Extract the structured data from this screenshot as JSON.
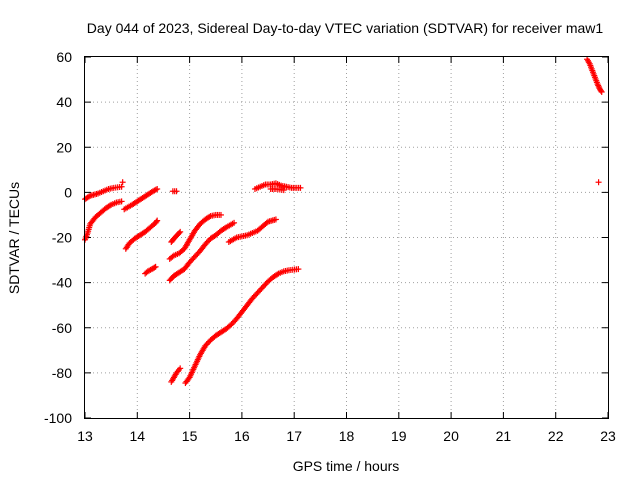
{
  "chart_data": {
    "type": "scatter",
    "title": "Day 044 of 2023, Sidereal Day-to-day VTEC variation (SDTVAR) for receiver maw1",
    "xlabel": "GPS time / hours",
    "ylabel": "SDTVAR / TECUs",
    "xlim": [
      13,
      23
    ],
    "ylim": [
      -100,
      60
    ],
    "xticks": [
      13,
      14,
      15,
      16,
      17,
      18,
      19,
      20,
      21,
      22,
      23
    ],
    "yticks": [
      -100,
      -80,
      -60,
      -40,
      -20,
      0,
      20,
      40,
      60
    ],
    "grid": true,
    "marker": "+",
    "marker_color": "#ff0000",
    "segments": [
      {
        "points": [
          [
            13.0,
            -3
          ],
          [
            13.1,
            -1.5
          ],
          [
            13.25,
            -0.5
          ],
          [
            13.35,
            0.5
          ],
          [
            13.45,
            1.5
          ],
          [
            13.55,
            2
          ],
          [
            13.7,
            2.5
          ]
        ]
      },
      {
        "points": [
          [
            13.0,
            -21
          ],
          [
            13.05,
            -18
          ],
          [
            13.1,
            -14
          ],
          [
            13.2,
            -11
          ],
          [
            13.3,
            -9
          ],
          [
            13.4,
            -7
          ],
          [
            13.5,
            -5.5
          ],
          [
            13.6,
            -4.5
          ],
          [
            13.7,
            -4
          ]
        ]
      },
      {
        "points": [
          [
            13.72,
            4.5
          ]
        ]
      },
      {
        "points": [
          [
            13.75,
            -7.5
          ],
          [
            13.9,
            -5.5
          ],
          [
            14.0,
            -4
          ],
          [
            14.1,
            -2.5
          ],
          [
            14.2,
            -1
          ],
          [
            14.3,
            0.5
          ],
          [
            14.38,
            1.5
          ]
        ]
      },
      {
        "points": [
          [
            13.78,
            -25
          ],
          [
            13.85,
            -22.5
          ],
          [
            13.95,
            -20.5
          ],
          [
            14.05,
            -19
          ],
          [
            14.15,
            -17.5
          ],
          [
            14.25,
            -15.5
          ],
          [
            14.35,
            -13.5
          ],
          [
            14.38,
            -12.5
          ]
        ]
      },
      {
        "points": [
          [
            14.15,
            -36
          ],
          [
            14.2,
            -35
          ],
          [
            14.28,
            -34
          ],
          [
            14.35,
            -33
          ]
        ]
      },
      {
        "points": [
          [
            14.68,
            0.5
          ],
          [
            14.75,
            0.5
          ]
        ]
      },
      {
        "points": [
          [
            14.65,
            -22
          ],
          [
            14.7,
            -20.5
          ],
          [
            14.78,
            -18.5
          ],
          [
            14.82,
            -17.5
          ]
        ]
      },
      {
        "points": [
          [
            14.62,
            -29.5
          ],
          [
            14.7,
            -28
          ],
          [
            14.8,
            -27
          ],
          [
            14.9,
            -25
          ],
          [
            15.0,
            -21
          ],
          [
            15.1,
            -17
          ],
          [
            15.2,
            -14
          ],
          [
            15.3,
            -12
          ],
          [
            15.4,
            -10.5
          ],
          [
            15.5,
            -10
          ],
          [
            15.6,
            -10
          ]
        ]
      },
      {
        "points": [
          [
            14.62,
            -39
          ],
          [
            14.7,
            -37
          ],
          [
            14.8,
            -35.5
          ],
          [
            14.9,
            -34
          ],
          [
            15.0,
            -31
          ],
          [
            15.1,
            -28.5
          ],
          [
            15.2,
            -26
          ],
          [
            15.3,
            -23
          ],
          [
            15.4,
            -20.5
          ],
          [
            15.5,
            -19
          ],
          [
            15.6,
            -17
          ],
          [
            15.7,
            -15.5
          ],
          [
            15.85,
            -13.5
          ]
        ]
      },
      {
        "points": [
          [
            14.65,
            -84
          ],
          [
            14.7,
            -82
          ],
          [
            14.75,
            -80
          ],
          [
            14.82,
            -78
          ]
        ]
      },
      {
        "points": [
          [
            14.92,
            -84.5
          ],
          [
            15.0,
            -82
          ],
          [
            15.1,
            -77
          ],
          [
            15.2,
            -72
          ],
          [
            15.3,
            -68
          ],
          [
            15.4,
            -65.5
          ],
          [
            15.5,
            -63.5
          ],
          [
            15.6,
            -62
          ],
          [
            15.7,
            -60.5
          ],
          [
            15.8,
            -58.5
          ],
          [
            15.9,
            -56
          ],
          [
            16.0,
            -53
          ],
          [
            16.1,
            -50
          ],
          [
            16.2,
            -47
          ],
          [
            16.3,
            -44.5
          ],
          [
            16.4,
            -42
          ],
          [
            16.5,
            -39.5
          ],
          [
            16.6,
            -37.5
          ],
          [
            16.7,
            -36
          ],
          [
            16.8,
            -35
          ],
          [
            16.9,
            -34.5
          ],
          [
            17.08,
            -34
          ]
        ]
      },
      {
        "points": [
          [
            15.75,
            -22
          ],
          [
            15.9,
            -20
          ],
          [
            16.0,
            -19.5
          ],
          [
            16.1,
            -19
          ],
          [
            16.2,
            -18
          ],
          [
            16.3,
            -17
          ],
          [
            16.4,
            -15
          ],
          [
            16.5,
            -13
          ],
          [
            16.65,
            -12
          ]
        ]
      },
      {
        "points": [
          [
            16.25,
            1.5
          ],
          [
            16.35,
            2.5
          ],
          [
            16.45,
            3.5
          ],
          [
            16.55,
            3.5
          ],
          [
            16.65,
            4
          ],
          [
            16.75,
            3
          ],
          [
            16.85,
            2.5
          ],
          [
            16.95,
            2
          ],
          [
            17.05,
            2
          ],
          [
            17.12,
            2
          ]
        ]
      },
      {
        "points": [
          [
            16.55,
            1.5
          ],
          [
            16.65,
            1.5
          ],
          [
            16.8,
            1
          ]
        ]
      },
      {
        "points": [
          [
            22.6,
            59
          ],
          [
            22.65,
            57
          ],
          [
            22.7,
            54
          ],
          [
            22.75,
            51
          ],
          [
            22.8,
            48
          ],
          [
            22.85,
            45.5
          ],
          [
            22.88,
            44.5
          ]
        ]
      },
      {
        "points": [
          [
            22.82,
            4.5
          ]
        ]
      }
    ]
  }
}
